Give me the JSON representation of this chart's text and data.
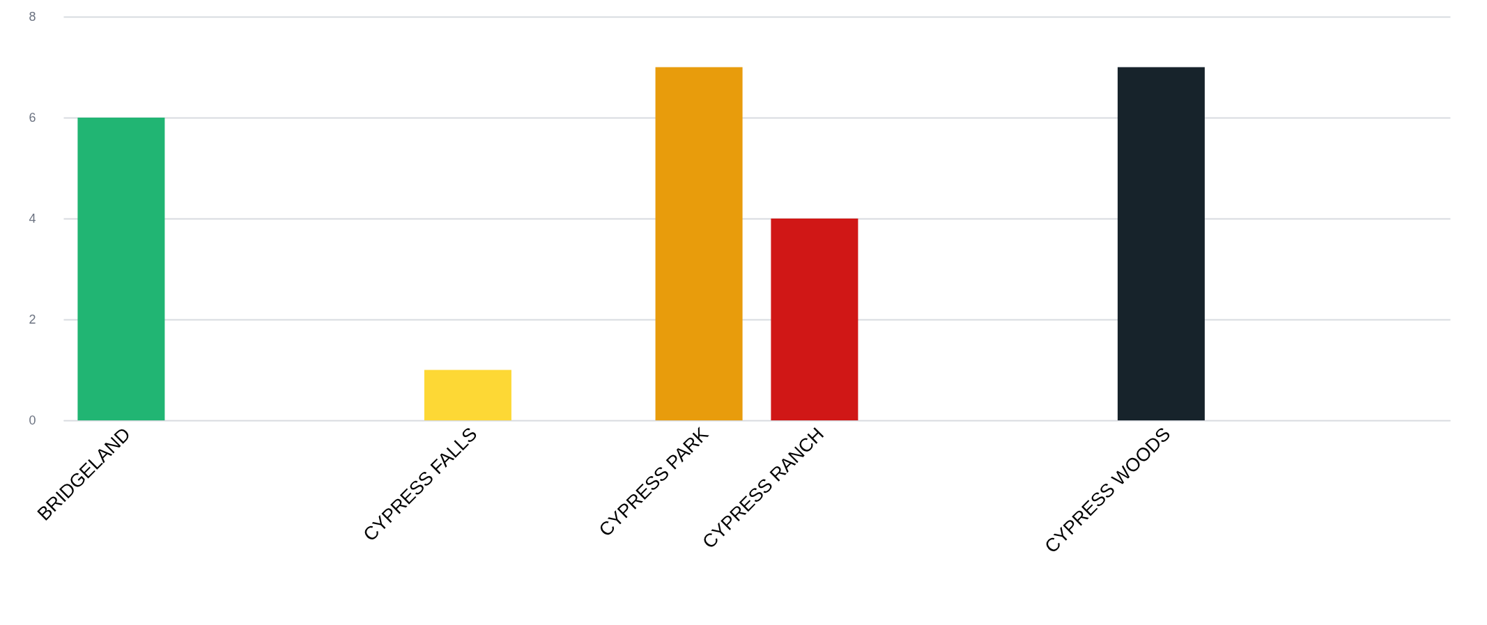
{
  "chart_data": {
    "type": "bar",
    "categories": [
      "BRIDGELAND",
      null,
      null,
      "CYPRESS FALLS",
      null,
      "CYPRESS PARK",
      "CYPRESS RANCH",
      null,
      null,
      "CYPRESS WOODS",
      null,
      null
    ],
    "values": [
      6,
      null,
      null,
      1,
      null,
      7,
      4,
      null,
      null,
      7,
      null,
      null
    ],
    "colors": [
      "#21b573",
      "#21b573",
      "#21b573",
      "#fdd835",
      "#fdd835",
      "#e89c0c",
      "#d01716",
      "#17232b",
      "#17232b",
      "#17232b",
      "#17232b",
      "#17232b"
    ],
    "ylim": [
      0,
      8
    ],
    "yticks": [
      0,
      2,
      4,
      6,
      8
    ],
    "grid": "y"
  }
}
